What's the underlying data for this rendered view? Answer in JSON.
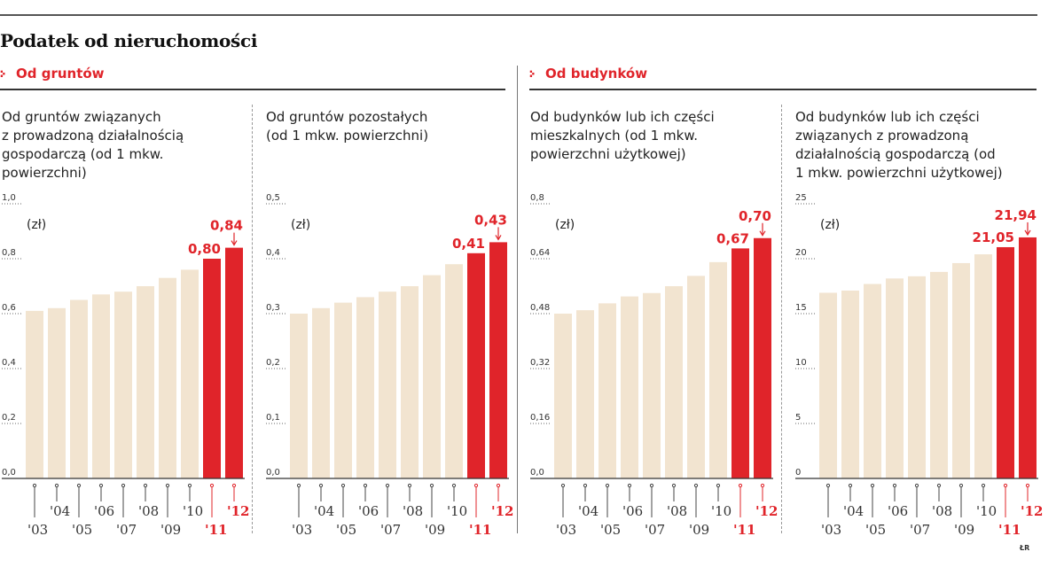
{
  "title": "Podatek od nieruchomości",
  "sections": [
    {
      "label": "Od gruntów"
    },
    {
      "label": "Od budynków"
    }
  ],
  "unit": "(zł)",
  "credit": "ŁR",
  "colors": {
    "regular": "#f2e4d0",
    "highlight": "#e0242a",
    "axis": "#333333"
  },
  "chart_data": [
    {
      "type": "bar",
      "section": "Od gruntów",
      "title": "Od gruntów związanych\nz prowadzoną działalnością\ngospodarczą (od 1 mkw.\npowierzchni)",
      "ylabel": "(zł)",
      "ylim": [
        0,
        1.0
      ],
      "yticks": [
        "0,0",
        "0,2",
        "0,4",
        "0,6",
        "0,8",
        "1,0"
      ],
      "categories": [
        "'03",
        "'04",
        "'05",
        "'06",
        "'07",
        "'08",
        "'09",
        "'10",
        "'11",
        "'12"
      ],
      "values": [
        0.61,
        0.62,
        0.65,
        0.67,
        0.68,
        0.7,
        0.73,
        0.76,
        0.8,
        0.84
      ],
      "highlighted": [
        8,
        9
      ],
      "data_labels": {
        "8": "0,80",
        "9": "0,84"
      }
    },
    {
      "type": "bar",
      "section": "Od gruntów",
      "title": "Od gruntów pozostałych\n(od 1 mkw. powierzchni)",
      "ylabel": "(zł)",
      "ylim": [
        0,
        0.5
      ],
      "yticks": [
        "0,0",
        "0,1",
        "0,2",
        "0,3",
        "0,4",
        "0,5"
      ],
      "categories": [
        "'03",
        "'04",
        "'05",
        "'06",
        "'07",
        "'08",
        "'09",
        "'10",
        "'11",
        "'12"
      ],
      "values": [
        0.3,
        0.31,
        0.32,
        0.33,
        0.34,
        0.35,
        0.37,
        0.39,
        0.41,
        0.43
      ],
      "highlighted": [
        8,
        9
      ],
      "data_labels": {
        "8": "0,41",
        "9": "0,43"
      }
    },
    {
      "type": "bar",
      "section": "Od budynków",
      "title": "Od budynków lub ich części\nmieszkalnych (od 1 mkw.\npowierzchni użytkowej)",
      "ylabel": "(zł)",
      "ylim": [
        0,
        0.8
      ],
      "yticks": [
        "0,0",
        "0,16",
        "0,32",
        "0,48",
        "0,64",
        "0,8"
      ],
      "categories": [
        "'03",
        "'04",
        "'05",
        "'06",
        "'07",
        "'08",
        "'09",
        "'10",
        "'11",
        "'12"
      ],
      "values": [
        0.48,
        0.49,
        0.51,
        0.53,
        0.54,
        0.56,
        0.59,
        0.63,
        0.67,
        0.7
      ],
      "highlighted": [
        8,
        9
      ],
      "data_labels": {
        "8": "0,67",
        "9": "0,70"
      }
    },
    {
      "type": "bar",
      "section": "Od budynków",
      "title": "Od budynków lub ich części\nzwiązanych z prowadzoną\ndziałalnością gospodarczą (od\n1 mkw. powierzchni użytkowej)",
      "ylabel": "(zł)",
      "ylim": [
        0,
        25
      ],
      "yticks": [
        "0",
        "5",
        "10",
        "15",
        "20",
        "25"
      ],
      "categories": [
        "'03",
        "'04",
        "'05",
        "'06",
        "'07",
        "'08",
        "'09",
        "'10",
        "'11",
        "'12"
      ],
      "values": [
        16.9,
        17.1,
        17.7,
        18.2,
        18.4,
        18.8,
        19.6,
        20.4,
        21.05,
        21.94
      ],
      "highlighted": [
        8,
        9
      ],
      "data_labels": {
        "8": "21,05",
        "9": "21,94"
      }
    }
  ]
}
